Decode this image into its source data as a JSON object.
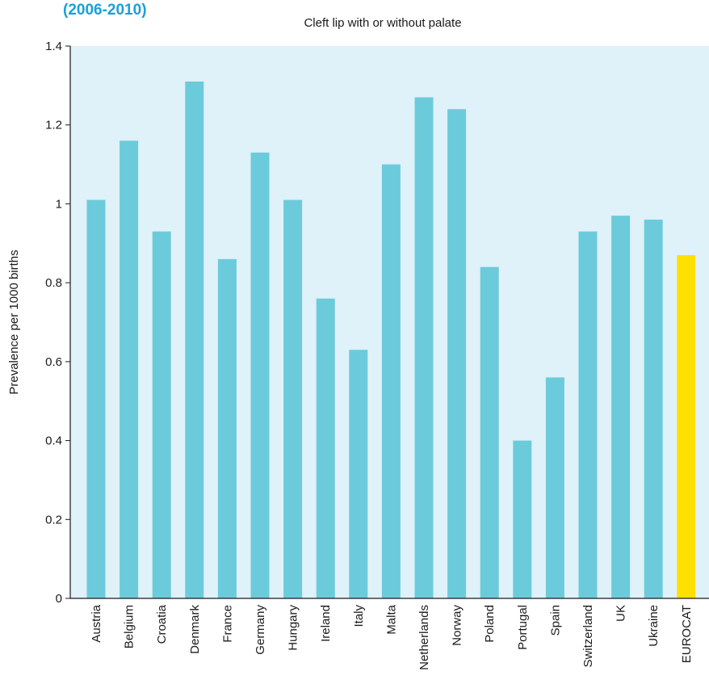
{
  "header_label": "(2006-2010)",
  "colors": {
    "header": "#1aa0d8",
    "plot_background": "#dff1f9",
    "bar": "#6ccbdb",
    "highlight_bar": "#ffe000",
    "axis": "#1a1a1a",
    "text": "#1a1a1a"
  },
  "chart_data": {
    "type": "bar",
    "title": "Cleft lip with or without palate",
    "xlabel": "",
    "ylabel": "Prevalence per 1000 births",
    "ylim": [
      0,
      1.4
    ],
    "yticks": [
      0,
      0.2,
      0.4,
      0.6,
      0.8,
      1,
      1.2,
      1.4
    ],
    "ytick_labels": [
      "0",
      "0.2",
      "0.4",
      "0.6",
      "0.8",
      "1",
      "1.2",
      "1.4"
    ],
    "grid": false,
    "highlight_category": "EUROCAT",
    "categories": [
      "Austria",
      "Belgium",
      "Croatia",
      "Denmark",
      "France",
      "Germany",
      "Hungary",
      "Ireland",
      "Italy",
      "Malta",
      "Netherlands",
      "Norway",
      "Poland",
      "Portugal",
      "Spain",
      "Switzerland",
      "UK",
      "Ukraine",
      "EUROCAT"
    ],
    "values": [
      1.01,
      1.16,
      0.93,
      1.31,
      0.86,
      1.13,
      1.01,
      0.76,
      0.63,
      1.1,
      1.27,
      1.24,
      0.84,
      0.4,
      0.56,
      0.93,
      0.97,
      0.96,
      0.87
    ]
  }
}
